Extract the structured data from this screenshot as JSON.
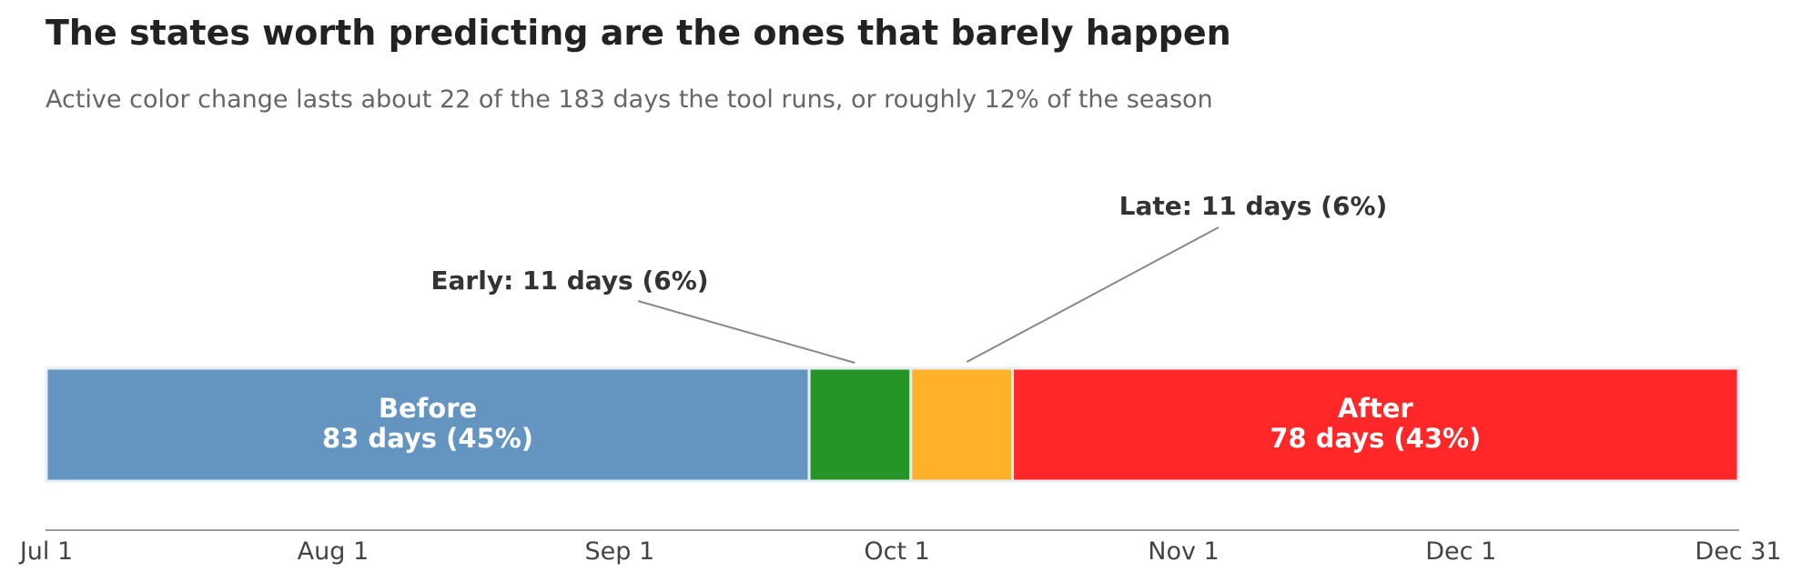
{
  "chart_data": {
    "type": "bar",
    "orientation": "horizontal-stacked",
    "title": "The states worth predicting are the ones that barely happen",
    "subtitle": "Active color change lasts about 22 of the 183 days the tool runs, or roughly 12% of the season",
    "total_days": 183,
    "x_ticks": [
      {
        "label": "Jul 1",
        "day": 0
      },
      {
        "label": "Aug 1",
        "day": 31
      },
      {
        "label": "Sep 1",
        "day": 62
      },
      {
        "label": "Oct 1",
        "day": 92
      },
      {
        "label": "Nov 1",
        "day": 123
      },
      {
        "label": "Dec 1",
        "day": 153
      },
      {
        "label": "Dec 31",
        "day": 183
      }
    ],
    "segments": [
      {
        "name": "Before",
        "start": 0,
        "days": 82.5,
        "color": "#6495c1",
        "label": "Before",
        "sublabel": "83 days (45%)",
        "label_mode": "inside"
      },
      {
        "name": "Early",
        "start": 82.5,
        "days": 11,
        "color": "#279428",
        "label": "Early: 11 days (6%)",
        "label_mode": "callout"
      },
      {
        "name": "Late",
        "start": 93.5,
        "days": 11,
        "color": "#ffb12a",
        "label": "Late: 11 days (6%)",
        "label_mode": "callout"
      },
      {
        "name": "After",
        "start": 104.5,
        "days": 78.5,
        "color": "#ff2727",
        "label": "After",
        "sublabel": "78 days (43%)",
        "label_mode": "inside"
      }
    ],
    "grid": false,
    "legend": "none"
  }
}
